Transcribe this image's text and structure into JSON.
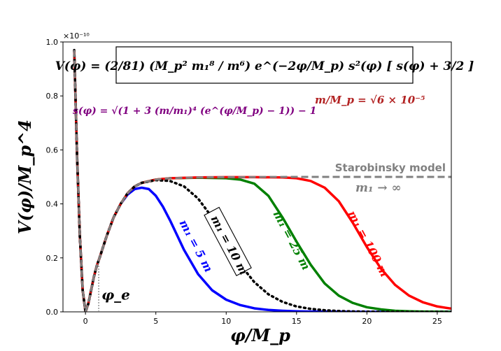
{
  "chart_data": {
    "type": "line",
    "xlabel": "φ/M_p",
    "ylabel": "V(φ)/M_p^4",
    "y_scale_label": "×10⁻¹⁰",
    "xlim": [
      -1.6,
      26
    ],
    "ylim": [
      0,
      1.0
    ],
    "x_ticks": [
      0,
      5,
      10,
      15,
      20,
      25
    ],
    "x_tick_labels": [
      "0",
      "5",
      "10",
      "15",
      "20",
      "25"
    ],
    "y_ticks": [
      0,
      0.2,
      0.4,
      0.6,
      0.8,
      1.0
    ],
    "y_tick_labels": [
      "0.0",
      "0.2",
      "0.4",
      "0.6",
      "0.8",
      "1.0"
    ],
    "grid": false,
    "formula_box": "V(φ) = (2/81) (M_p² m₁⁸ / m⁶) e^(−2φ/M_p) s²(φ) [ s(φ) + 3/2 ]",
    "s_definition": "s(φ) = √(1 + 3 (m/m₁)⁴ (e^(φ/M_p) − 1)) − 1",
    "mass_ratio": "m/M_p = √6 × 10⁻⁵",
    "phi_e_label": "φ_e",
    "phi_e_value": 0.94,
    "series": [
      {
        "name": "Starobinsky model",
        "sublabel": "m₁ → ∞",
        "color": "#808080",
        "style": "dashed",
        "x": [
          -0.8,
          -0.6,
          -0.4,
          -0.2,
          0,
          0.2,
          0.4,
          0.6,
          0.8,
          1,
          1.5,
          2,
          2.5,
          3,
          3.5,
          4,
          5,
          6,
          8,
          10,
          15,
          20,
          26
        ],
        "y": [
          0.97,
          0.58,
          0.28,
          0.08,
          0.0,
          0.03,
          0.08,
          0.13,
          0.17,
          0.2,
          0.28,
          0.35,
          0.4,
          0.44,
          0.465,
          0.478,
          0.49,
          0.495,
          0.498,
          0.499,
          0.5,
          0.5,
          0.5
        ]
      },
      {
        "name": "m₁ = 5 m",
        "color": "#0000ff",
        "style": "solid",
        "x": [
          -0.8,
          -0.6,
          -0.4,
          -0.2,
          0,
          0.2,
          0.4,
          0.6,
          0.8,
          1,
          1.5,
          2,
          2.5,
          3,
          3.5,
          4,
          4.5,
          5,
          5.5,
          6,
          7,
          8,
          9,
          10,
          11,
          12,
          13,
          14,
          15,
          16,
          17,
          18,
          20,
          22,
          26
        ],
        "y": [
          0.97,
          0.58,
          0.28,
          0.08,
          0.0,
          0.03,
          0.08,
          0.13,
          0.17,
          0.2,
          0.28,
          0.35,
          0.4,
          0.435,
          0.455,
          0.46,
          0.455,
          0.43,
          0.39,
          0.34,
          0.23,
          0.14,
          0.08,
          0.045,
          0.025,
          0.013,
          0.007,
          0.004,
          0.002,
          0.001,
          0.0005,
          0.0002,
          0.0,
          0.0,
          0.0
        ]
      },
      {
        "name": "m₁ = 10 m",
        "color": "#000000",
        "style": "dotted",
        "x": [
          -0.8,
          -0.6,
          -0.4,
          -0.2,
          0,
          0.2,
          0.4,
          0.6,
          0.8,
          1,
          1.5,
          2,
          2.5,
          3,
          3.5,
          4,
          5,
          6,
          7,
          8,
          9,
          10,
          11,
          12,
          13,
          14,
          15,
          16,
          17,
          18,
          19,
          20,
          22,
          26
        ],
        "y": [
          0.97,
          0.58,
          0.28,
          0.08,
          0.0,
          0.03,
          0.08,
          0.13,
          0.17,
          0.2,
          0.28,
          0.35,
          0.4,
          0.44,
          0.465,
          0.478,
          0.488,
          0.485,
          0.465,
          0.42,
          0.35,
          0.26,
          0.175,
          0.11,
          0.065,
          0.037,
          0.02,
          0.011,
          0.006,
          0.003,
          0.0015,
          0.0007,
          0.0,
          0.0
        ]
      },
      {
        "name": "m₁ = 25 m",
        "color": "#008000",
        "style": "solid",
        "x": [
          -0.8,
          -0.6,
          -0.4,
          -0.2,
          0,
          0.2,
          0.4,
          0.6,
          0.8,
          1,
          1.5,
          2,
          2.5,
          3,
          3.5,
          4,
          5,
          6,
          8,
          10,
          11,
          12,
          13,
          14,
          15,
          16,
          17,
          18,
          19,
          20,
          21,
          22,
          23,
          24,
          26
        ],
        "y": [
          0.97,
          0.58,
          0.28,
          0.08,
          0.0,
          0.03,
          0.08,
          0.13,
          0.17,
          0.2,
          0.28,
          0.35,
          0.4,
          0.44,
          0.465,
          0.478,
          0.49,
          0.495,
          0.497,
          0.495,
          0.49,
          0.475,
          0.43,
          0.35,
          0.26,
          0.175,
          0.105,
          0.06,
          0.033,
          0.017,
          0.009,
          0.004,
          0.002,
          0.001,
          0.0
        ]
      },
      {
        "name": "m₁ = 100 m",
        "color": "#ff0000",
        "style": "solid",
        "x": [
          -0.8,
          -0.6,
          -0.4,
          -0.2,
          0,
          0.2,
          0.4,
          0.6,
          0.8,
          1,
          1.5,
          2,
          2.5,
          3,
          3.5,
          4,
          5,
          6,
          8,
          10,
          12,
          14,
          15,
          16,
          17,
          18,
          19,
          20,
          21,
          22,
          23,
          24,
          25,
          26
        ],
        "y": [
          0.97,
          0.58,
          0.28,
          0.08,
          0.0,
          0.03,
          0.08,
          0.13,
          0.17,
          0.2,
          0.28,
          0.35,
          0.4,
          0.44,
          0.465,
          0.478,
          0.49,
          0.495,
          0.498,
          0.499,
          0.499,
          0.498,
          0.495,
          0.485,
          0.46,
          0.41,
          0.33,
          0.24,
          0.16,
          0.1,
          0.06,
          0.035,
          0.02,
          0.012
        ]
      }
    ]
  }
}
